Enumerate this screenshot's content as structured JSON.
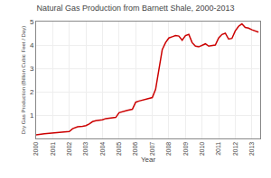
{
  "chart_data": {
    "type": "line",
    "title": "Natural Gas Production from Barnett Shale, 2000-2013",
    "xlabel": "Year",
    "ylabel": "Dry Gas Production (Billion Cubic Feet / Day)",
    "color": "#cc0000",
    "grid": true,
    "xlim": [
      2000,
      2013.5
    ],
    "ylim": [
      0,
      5
    ],
    "xticks": [
      2000,
      2001,
      2002,
      2003,
      2004,
      2005,
      2006,
      2007,
      2008,
      2009,
      2010,
      2011,
      2012,
      2013
    ],
    "yticks": [
      1,
      2,
      3,
      4,
      5
    ],
    "x": [
      2000.0,
      2000.1,
      2000.3,
      2000.5,
      2000.8,
      2001.0,
      2001.2,
      2001.5,
      2001.8,
      2002.0,
      2002.2,
      2002.5,
      2002.8,
      2003.0,
      2003.2,
      2003.4,
      2003.6,
      2003.9,
      2004.0,
      2004.2,
      2004.5,
      2004.8,
      2005.0,
      2005.2,
      2005.5,
      2005.8,
      2006.0,
      2006.2,
      2006.5,
      2006.8,
      2007.0,
      2007.2,
      2007.4,
      2007.6,
      2007.8,
      2008.0,
      2008.2,
      2008.4,
      2008.6,
      2008.8,
      2009.0,
      2009.2,
      2009.4,
      2009.6,
      2009.8,
      2010.0,
      2010.2,
      2010.4,
      2010.6,
      2010.8,
      2011.0,
      2011.2,
      2011.4,
      2011.6,
      2011.8,
      2012.0,
      2012.2,
      2012.4,
      2012.6,
      2012.8,
      2013.0,
      2013.2,
      2013.4
    ],
    "values": [
      0.15,
      0.17,
      0.18,
      0.2,
      0.22,
      0.24,
      0.24,
      0.26,
      0.27,
      0.3,
      0.42,
      0.5,
      0.52,
      0.55,
      0.62,
      0.72,
      0.76,
      0.78,
      0.8,
      0.85,
      0.88,
      0.9,
      1.1,
      1.15,
      1.2,
      1.25,
      1.55,
      1.6,
      1.65,
      1.7,
      1.75,
      2.1,
      3.0,
      3.8,
      4.1,
      4.3,
      4.35,
      4.4,
      4.38,
      4.2,
      4.4,
      4.45,
      4.1,
      3.95,
      3.92,
      4.0,
      4.05,
      3.95,
      3.98,
      4.0,
      4.3,
      4.45,
      4.5,
      4.25,
      4.28,
      4.6,
      4.8,
      4.9,
      4.75,
      4.72,
      4.65,
      4.6,
      4.55
    ]
  }
}
